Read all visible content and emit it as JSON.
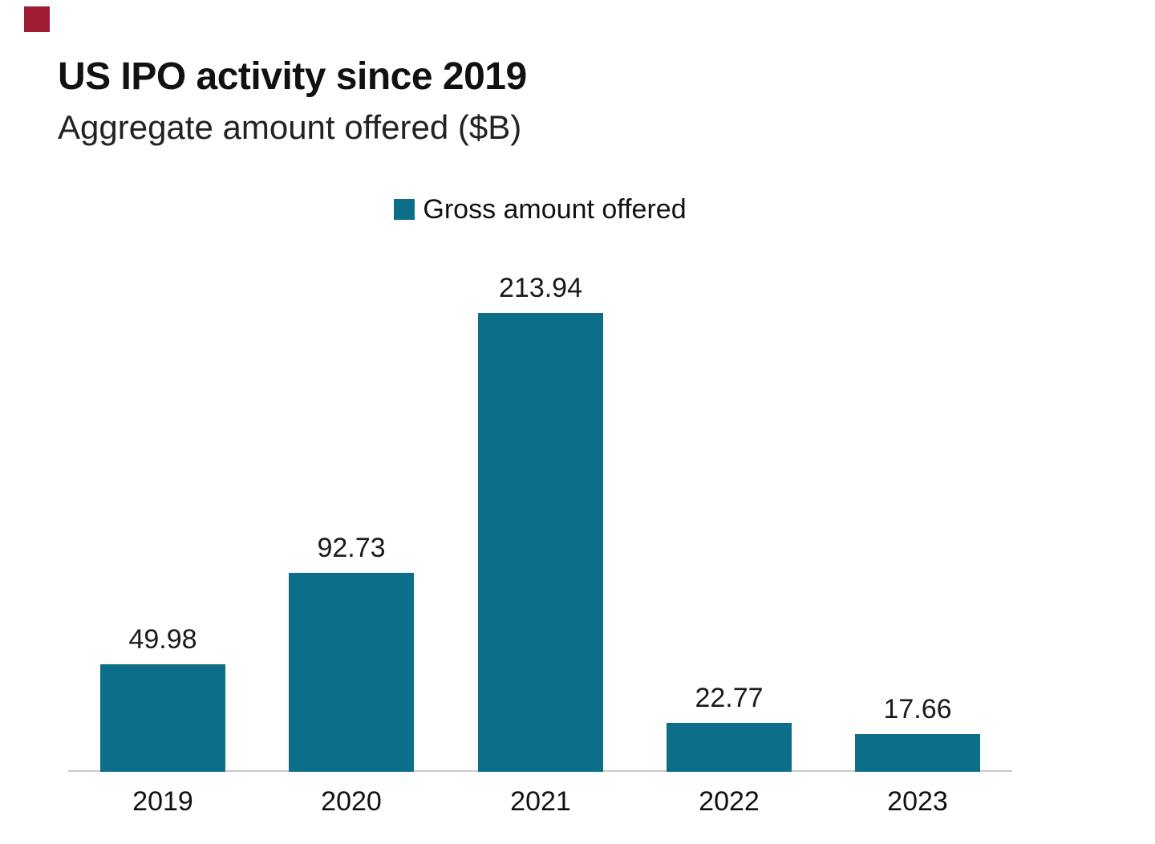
{
  "page": {
    "background": "#ffffff"
  },
  "brand_mark": {
    "color": "#9e1b32"
  },
  "header": {
    "title": "US IPO activity since 2019",
    "subtitle": "Aggregate amount offered ($B)"
  },
  "legend": {
    "label": "Gross amount offered",
    "swatch_color": "#0d6e8a"
  },
  "chart_data": {
    "type": "bar",
    "title": "US IPO activity since 2019",
    "subtitle": "Aggregate amount offered ($B)",
    "categories": [
      "2019",
      "2020",
      "2021",
      "2022",
      "2023"
    ],
    "series": [
      {
        "name": "Gross amount offered",
        "values": [
          49.98,
          92.73,
          213.94,
          22.77,
          17.66
        ]
      }
    ],
    "value_labels": [
      "49.98",
      "92.73",
      "213.94",
      "22.77",
      "17.66"
    ],
    "bar_color": "#0d6e8a",
    "axis_line_color": "#c9c9c9",
    "ylim": [
      0,
      220
    ],
    "grid": false,
    "legend_position": "top-center",
    "xlabel": "",
    "ylabel": "Aggregate amount offered ($B)"
  }
}
